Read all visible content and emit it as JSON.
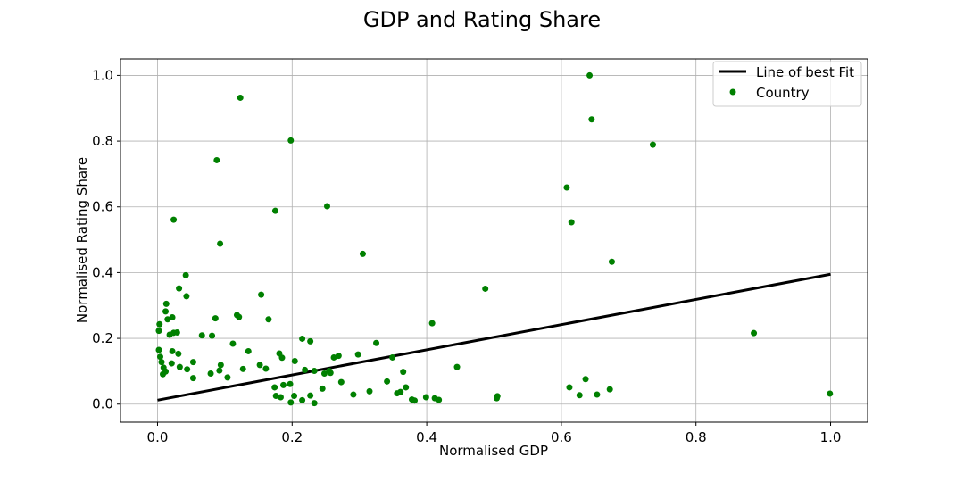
{
  "chart_data": {
    "type": "scatter",
    "title": "GDP and Rating Share",
    "xlabel": "Normalised GDP",
    "ylabel": "Normalised Rating Share",
    "xlim": [
      -0.055,
      1.055
    ],
    "ylim": [
      -0.055,
      1.05
    ],
    "xticks": [
      0.0,
      0.2,
      0.4,
      0.6,
      0.8,
      1.0
    ],
    "xtick_labels": [
      "0.0",
      "0.2",
      "0.4",
      "0.6",
      "0.8",
      "1.0"
    ],
    "yticks": [
      0.0,
      0.2,
      0.4,
      0.6,
      0.8,
      1.0
    ],
    "ytick_labels": [
      "0.0",
      "0.2",
      "0.4",
      "0.6",
      "0.8",
      "1.0"
    ],
    "grid": true,
    "legend_position": "top-right",
    "series": [
      {
        "name": "Line of best Fit",
        "type": "line",
        "color": "#000000",
        "x": [
          0.0,
          1.0
        ],
        "y": [
          0.012,
          0.395
        ]
      },
      {
        "name": "Country",
        "type": "scatter",
        "color": "#008000",
        "x": [
          0.123,
          0.642,
          0.645,
          0.198,
          0.088,
          0.736,
          0.608,
          0.252,
          0.175,
          0.615,
          0.024,
          0.093,
          0.305,
          0.675,
          0.042,
          0.487,
          0.032,
          0.043,
          0.154,
          0.013,
          0.118,
          0.121,
          0.012,
          0.086,
          0.022,
          0.165,
          0.003,
          0.015,
          0.018,
          0.408,
          0.002,
          0.066,
          0.081,
          0.029,
          0.024,
          0.002,
          0.886,
          0.215,
          0.227,
          0.112,
          0.022,
          0.262,
          0.004,
          0.135,
          0.325,
          0.181,
          0.298,
          0.031,
          0.185,
          0.053,
          0.021,
          0.204,
          0.349,
          0.269,
          0.006,
          0.094,
          0.152,
          0.033,
          0.009,
          0.127,
          0.445,
          0.044,
          0.092,
          0.255,
          0.161,
          0.219,
          0.012,
          0.248,
          0.365,
          0.008,
          0.079,
          0.257,
          0.104,
          0.233,
          0.341,
          0.273,
          0.053,
          0.612,
          0.636,
          0.672,
          0.369,
          0.197,
          0.187,
          0.356,
          0.361,
          0.315,
          0.174,
          0.291,
          0.653,
          0.627,
          0.505,
          0.999,
          0.227,
          0.504,
          0.399,
          0.233,
          0.412,
          0.418,
          0.382,
          0.378,
          0.176,
          0.183,
          0.203,
          0.215,
          0.198,
          0.245
        ],
        "y": [
          0.932,
          1.0,
          0.866,
          0.802,
          0.742,
          0.789,
          0.659,
          0.602,
          0.588,
          0.553,
          0.561,
          0.488,
          0.457,
          0.433,
          0.392,
          0.351,
          0.352,
          0.328,
          0.333,
          0.305,
          0.271,
          0.265,
          0.282,
          0.261,
          0.264,
          0.258,
          0.243,
          0.258,
          0.211,
          0.246,
          0.223,
          0.209,
          0.208,
          0.218,
          0.217,
          0.165,
          0.216,
          0.199,
          0.191,
          0.184,
          0.161,
          0.142,
          0.144,
          0.161,
          0.186,
          0.154,
          0.151,
          0.153,
          0.141,
          0.128,
          0.124,
          0.131,
          0.142,
          0.147,
          0.128,
          0.119,
          0.119,
          0.113,
          0.111,
          0.107,
          0.113,
          0.106,
          0.102,
          0.101,
          0.108,
          0.104,
          0.099,
          0.093,
          0.098,
          0.091,
          0.093,
          0.095,
          0.081,
          0.101,
          0.069,
          0.067,
          0.079,
          0.051,
          0.076,
          0.045,
          0.051,
          0.061,
          0.058,
          0.033,
          0.037,
          0.039,
          0.051,
          0.029,
          0.029,
          0.027,
          0.024,
          0.032,
          0.026,
          0.018,
          0.021,
          0.003,
          0.018,
          0.013,
          0.011,
          0.014,
          0.025,
          0.021,
          0.025,
          0.012,
          0.005,
          0.047
        ]
      }
    ]
  }
}
